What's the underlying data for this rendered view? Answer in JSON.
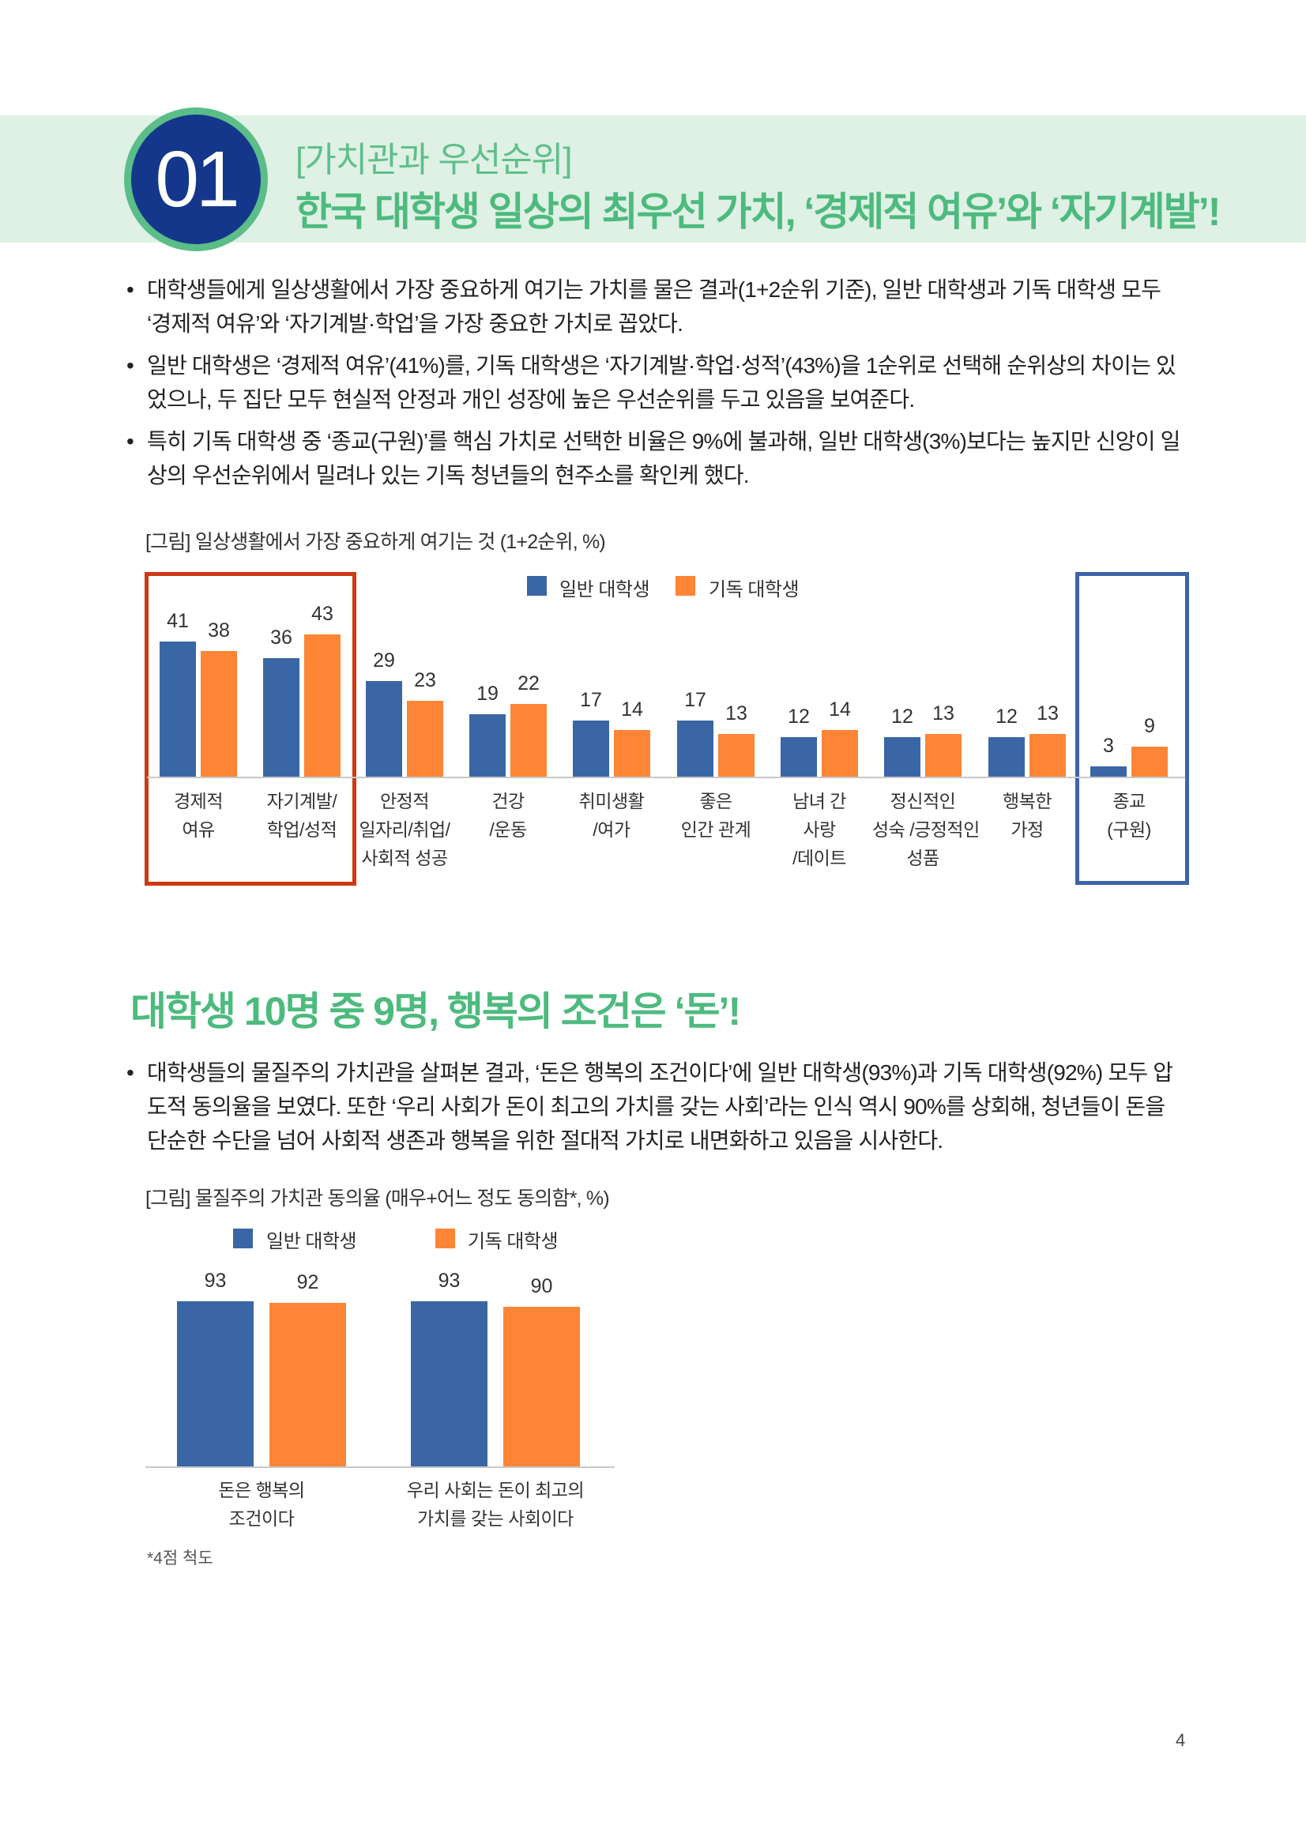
{
  "header": {
    "number": "01",
    "kicker": "[가치관과 우선순위]",
    "title": "한국 대학생 일상의 최우선 가치, ‘경제적 여유’와 ‘자기계발’!"
  },
  "section1": {
    "bullets": [
      "대학생들에게 일상생활에서 가장 중요하게 여기는 가치를 물은 결과(1+2순위 기준), 일반 대학생과 기독 대학생 모두 ‘경제적 여유’와 ‘자기계발·학업’을 가장 중요한 가치로 꼽았다.",
      "일반 대학생은 ‘경제적 여유’(41%)를, 기독 대학생은 ‘자기계발·학업·성적’(43%)을 1순위로 선택해 순위상의 차이는 있었으나, 두 집단 모두 현실적 안정과 개인 성장에 높은 우선순위를 두고 있음을 보여준다.",
      "특히 기독 대학생 중 ‘종교(구원)’를 핵심 가치로 선택한 비율은 9%에 불과해, 일반 대학생(3%)보다는 높지만 신앙이 일상의 우선순위에서 밀려나 있는 기독 청년들의 현주소를 확인케 했다."
    ],
    "figure_caption": "[그림] 일상생활에서 가장 중요하게 여기는 것 (1+2순위, %)"
  },
  "section2": {
    "heading": "대학생 10명 중 9명, 행복의 조건은 ‘돈’!",
    "bullets": [
      "대학생들의 물질주의 가치관을 살펴본 결과, ‘돈은 행복의 조건이다’에 일반 대학생(93%)과 기독 대학생(92%) 모두 압도적 동의율을 보였다. 또한 ‘우리 사회가 돈이 최고의 가치를 갖는 사회’라는 인식 역시 90%를 상회해, 청년들이 돈을 단순한 수단을 넘어 사회적 생존과 행복을 위한 절대적 가치로 내면화하고 있음을 시사한다."
    ],
    "figure_caption": "[그림] 물질주의 가치관 동의율 (매우+어느 정도 동의함*, %)",
    "footnote": "*4점 척도"
  },
  "page_number": "4",
  "colors": {
    "general": "#3a66a5",
    "christian": "#fd8535",
    "accent_green": "#4dba7e",
    "navy": "#14378b",
    "highlight_red": "#cc3a14",
    "highlight_blue": "#3c64a8"
  },
  "chart_data": [
    {
      "type": "bar",
      "title": "[그림] 일상생활에서 가장 중요하게 여기는 것 (1+2순위, %)",
      "legend_position": "top",
      "categories": [
        [
          "경제적",
          "여유"
        ],
        [
          "자기계발/",
          "학업/성적"
        ],
        [
          "안정적",
          "일자리/취업/",
          "사회적 성공"
        ],
        [
          "건강",
          "/운동"
        ],
        [
          "취미생활",
          "/여가"
        ],
        [
          "좋은",
          "인간 관계"
        ],
        [
          "남녀 간",
          "사랑",
          "/데이트"
        ],
        [
          "정신적인",
          "성숙 /긍정적인",
          "성품"
        ],
        [
          "행복한",
          "가정"
        ],
        [
          "종교",
          "(구원)"
        ]
      ],
      "series": [
        {
          "name": "일반 대학생",
          "values": [
            41,
            36,
            29,
            19,
            17,
            17,
            12,
            12,
            12,
            3
          ]
        },
        {
          "name": "기독 대학생",
          "values": [
            38,
            43,
            23,
            22,
            14,
            13,
            14,
            13,
            13,
            9
          ]
        }
      ],
      "grid": false
    },
    {
      "type": "bar",
      "title": "[그림] 물질주의 가치관 동의율 (매우+어느 정도 동의함*, %)",
      "legend_position": "top",
      "categories": [
        [
          "돈은 행복의",
          "조건이다"
        ],
        [
          "우리 사회는 돈이 최고의",
          "가치를 갖는 사회이다"
        ]
      ],
      "series": [
        {
          "name": "일반 대학생",
          "values": [
            93,
            93
          ]
        },
        {
          "name": "기독 대학생",
          "values": [
            92,
            90
          ]
        }
      ],
      "grid": false
    }
  ]
}
